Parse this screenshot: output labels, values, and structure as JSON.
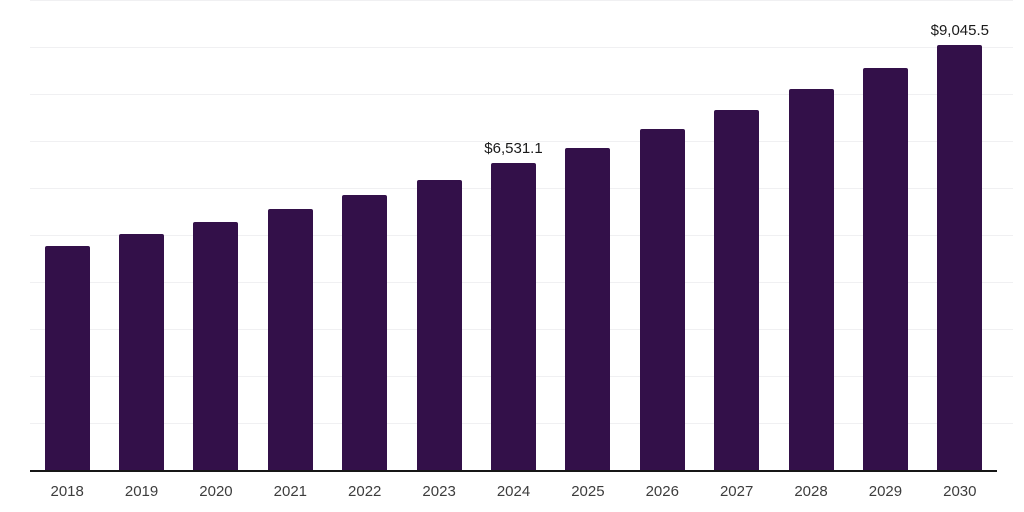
{
  "chart_data": {
    "type": "bar",
    "title": "",
    "xlabel": "",
    "ylabel": "",
    "categories": [
      "2018",
      "2019",
      "2020",
      "2021",
      "2022",
      "2023",
      "2024",
      "2025",
      "2026",
      "2027",
      "2028",
      "2029",
      "2030"
    ],
    "values": [
      4760,
      5020,
      5280,
      5550,
      5860,
      6180,
      6531.1,
      6860,
      7260,
      7670,
      8110,
      8550,
      9045.5
    ],
    "data_labels": {
      "2024": "$6,531.1",
      "2030": "$9,045.5"
    },
    "ylim": [
      0,
      10000
    ],
    "grid_step": 1000,
    "grid": "horizontal-only",
    "legend": "none",
    "y_axis_labels": "none",
    "colors": {
      "bar": "#331049",
      "axis_line": "#161616",
      "gridline": "#f0f0f2",
      "tick_label": "#3d3d3d",
      "value_label": "#1a1a1a",
      "background": "#ffffff"
    }
  }
}
